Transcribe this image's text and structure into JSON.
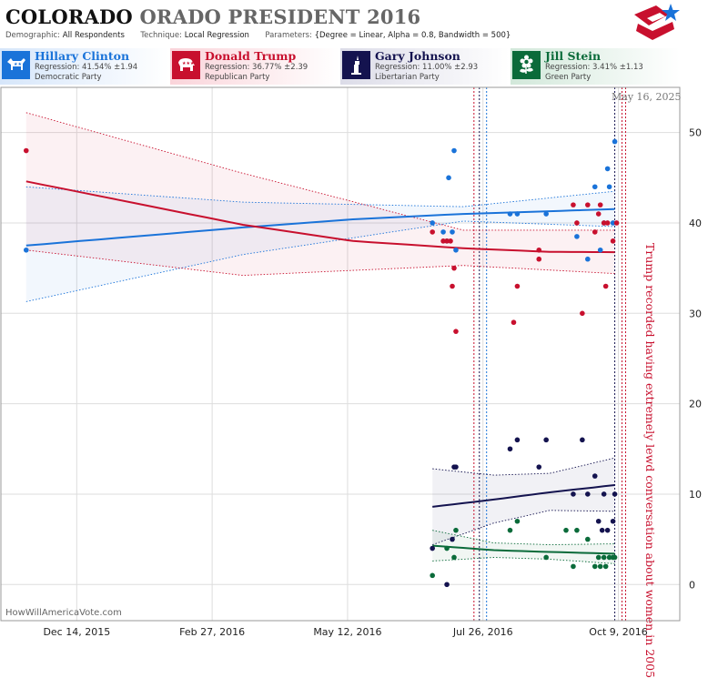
{
  "header": {
    "title_main": "COLORADO",
    "title_rest": "ORADO PRESIDENT 2016",
    "demographic_label": "Demographic:",
    "demographic_value": "All Respondents",
    "technique_label": "Technique:",
    "technique_value": "Local Regression",
    "parameters_label": "Parameters:",
    "parameters_value": "{Degree = Linear, Alpha = 0.8, Bandwidth = 500}"
  },
  "candidates": [
    {
      "name": "Hillary Clinton",
      "regression": "Regression: 41.54% ±1.94",
      "party": "Democratic Party",
      "color": "#1a73d9",
      "icon": "donkey-icon"
    },
    {
      "name": "Donald Trump",
      "regression": "Regression: 36.77% ±2.39",
      "party": "Republican Party",
      "color": "#c8102e",
      "icon": "elephant-icon"
    },
    {
      "name": "Gary Johnson",
      "regression": "Regression: 11.00% ±2.93",
      "party": "Libertarian Party",
      "color": "#14134f",
      "icon": "liberty-statue-icon"
    },
    {
      "name": "Jill Stein",
      "regression": "Regression: 3.41% ±1.13",
      "party": "Green Party",
      "color": "#0b6b3a",
      "icon": "flower-icon"
    }
  ],
  "datestamp": "May 16, 2025",
  "credit": "HowWillAmericaVote.com",
  "annotation": "Trump recorded having extremely lewd conversation about women in 2005",
  "chart_data": {
    "type": "scatter",
    "x_axis": {
      "type": "date",
      "range": [
        "2015-11-02",
        "2016-11-12"
      ],
      "ticks": [
        "2015-12-14",
        "2016-02-27",
        "2016-05-12",
        "2016-07-26",
        "2016-10-09"
      ],
      "tick_labels": [
        "Dec 14, 2015",
        "Feb 27, 2016",
        "May 12, 2016",
        "Jul 26, 2016",
        "Oct 9, 2016"
      ]
    },
    "y_axis": {
      "range": [
        -4,
        55
      ],
      "ticks": [
        0,
        10,
        20,
        30,
        40,
        50
      ],
      "position": "right"
    },
    "grid": true,
    "event_lines": [
      {
        "date": "2016-07-21",
        "color": "#c8102e"
      },
      {
        "date": "2016-07-24",
        "color": "#14134f"
      },
      {
        "date": "2016-07-28",
        "color": "#1a73d9"
      },
      {
        "date": "2016-10-07",
        "color": "#14134f"
      },
      {
        "date": "2016-10-11",
        "color": "#c8102e"
      },
      {
        "date": "2016-10-13",
        "color": "#c8102e"
      }
    ],
    "series": [
      {
        "name": "Hillary Clinton",
        "color": "#1a73d9",
        "points": [
          [
            "2015-11-16",
            37
          ],
          [
            "2016-06-28",
            40
          ],
          [
            "2016-07-04",
            39
          ],
          [
            "2016-07-06",
            38
          ],
          [
            "2016-07-07",
            45
          ],
          [
            "2016-07-09",
            39
          ],
          [
            "2016-07-10",
            48
          ],
          [
            "2016-07-11",
            37
          ],
          [
            "2016-08-10",
            41
          ],
          [
            "2016-08-14",
            41
          ],
          [
            "2016-08-30",
            41
          ],
          [
            "2016-09-16",
            38.5
          ],
          [
            "2016-09-22",
            36
          ],
          [
            "2016-09-26",
            44
          ],
          [
            "2016-09-29",
            37
          ],
          [
            "2016-10-01",
            40
          ],
          [
            "2016-10-03",
            46
          ],
          [
            "2016-10-04",
            44
          ],
          [
            "2016-10-06",
            40
          ],
          [
            "2016-10-07",
            49
          ]
        ],
        "trend": [
          [
            "2015-11-16",
            37.5
          ],
          [
            "2016-01-15",
            38.5
          ],
          [
            "2016-03-15",
            39.5
          ],
          [
            "2016-05-15",
            40.4
          ],
          [
            "2016-07-15",
            41
          ],
          [
            "2016-09-01",
            41.3
          ],
          [
            "2016-10-07",
            41.54
          ]
        ],
        "upper": [
          [
            "2015-11-16",
            44
          ],
          [
            "2016-03-15",
            42.3
          ],
          [
            "2016-07-15",
            41.8
          ],
          [
            "2016-10-07",
            43.5
          ]
        ],
        "lower": [
          [
            "2015-11-16",
            31.3
          ],
          [
            "2016-03-15",
            36.5
          ],
          [
            "2016-07-15",
            40.2
          ],
          [
            "2016-10-07",
            39.6
          ]
        ]
      },
      {
        "name": "Donald Trump",
        "color": "#c8102e",
        "points": [
          [
            "2015-11-16",
            48
          ],
          [
            "2016-06-28",
            39
          ],
          [
            "2016-07-04",
            38
          ],
          [
            "2016-07-06",
            38
          ],
          [
            "2016-07-08",
            38
          ],
          [
            "2016-07-09",
            33
          ],
          [
            "2016-07-10",
            35
          ],
          [
            "2016-07-11",
            28
          ],
          [
            "2016-08-12",
            29
          ],
          [
            "2016-08-14",
            33
          ],
          [
            "2016-08-26",
            37
          ],
          [
            "2016-08-26",
            36
          ],
          [
            "2016-09-14",
            42
          ],
          [
            "2016-09-16",
            40
          ],
          [
            "2016-09-19",
            30
          ],
          [
            "2016-09-22",
            42
          ],
          [
            "2016-09-26",
            39
          ],
          [
            "2016-09-28",
            41
          ],
          [
            "2016-09-29",
            42
          ],
          [
            "2016-10-01",
            40
          ],
          [
            "2016-10-02",
            33
          ],
          [
            "2016-10-03",
            40
          ],
          [
            "2016-10-06",
            38
          ],
          [
            "2016-10-08",
            40
          ]
        ],
        "trend": [
          [
            "2015-11-16",
            44.6
          ],
          [
            "2016-01-15",
            42.2
          ],
          [
            "2016-03-15",
            39.8
          ],
          [
            "2016-05-15",
            38
          ],
          [
            "2016-07-15",
            37.2
          ],
          [
            "2016-09-01",
            36.8
          ],
          [
            "2016-10-07",
            36.77
          ]
        ],
        "upper": [
          [
            "2015-11-16",
            52.2
          ],
          [
            "2016-03-15",
            45.5
          ],
          [
            "2016-07-15",
            39.2
          ],
          [
            "2016-10-07",
            39.2
          ]
        ],
        "lower": [
          [
            "2015-11-16",
            37
          ],
          [
            "2016-03-15",
            34.2
          ],
          [
            "2016-07-15",
            35.3
          ],
          [
            "2016-10-07",
            34.4
          ]
        ]
      },
      {
        "name": "Gary Johnson",
        "color": "#14134f",
        "points": [
          [
            "2016-06-28",
            4
          ],
          [
            "2016-07-06",
            0
          ],
          [
            "2016-07-09",
            5
          ],
          [
            "2016-07-10",
            13
          ],
          [
            "2016-07-11",
            13
          ],
          [
            "2016-08-10",
            15
          ],
          [
            "2016-08-14",
            16
          ],
          [
            "2016-08-26",
            13
          ],
          [
            "2016-08-30",
            16
          ],
          [
            "2016-09-14",
            10
          ],
          [
            "2016-09-19",
            16
          ],
          [
            "2016-09-22",
            10
          ],
          [
            "2016-09-26",
            12
          ],
          [
            "2016-09-28",
            7
          ],
          [
            "2016-09-30",
            6
          ],
          [
            "2016-10-01",
            10
          ],
          [
            "2016-10-03",
            6
          ],
          [
            "2016-10-06",
            7
          ],
          [
            "2016-10-07",
            10
          ]
        ],
        "trend": [
          [
            "2016-06-28",
            8.6
          ],
          [
            "2016-08-01",
            9.4
          ],
          [
            "2016-09-01",
            10.2
          ],
          [
            "2016-10-07",
            11
          ]
        ],
        "upper": [
          [
            "2016-06-28",
            12.8
          ],
          [
            "2016-08-01",
            12.1
          ],
          [
            "2016-09-01",
            12.3
          ],
          [
            "2016-10-07",
            14
          ]
        ],
        "lower": [
          [
            "2016-06-28",
            4.4
          ],
          [
            "2016-08-01",
            6.8
          ],
          [
            "2016-09-01",
            8.2
          ],
          [
            "2016-10-07",
            8.1
          ]
        ]
      },
      {
        "name": "Jill Stein",
        "color": "#0b6b3a",
        "points": [
          [
            "2016-06-28",
            1
          ],
          [
            "2016-07-06",
            4
          ],
          [
            "2016-07-10",
            3
          ],
          [
            "2016-07-11",
            6
          ],
          [
            "2016-08-10",
            6
          ],
          [
            "2016-08-14",
            7
          ],
          [
            "2016-08-30",
            3
          ],
          [
            "2016-09-10",
            6
          ],
          [
            "2016-09-14",
            2
          ],
          [
            "2016-09-16",
            6
          ],
          [
            "2016-09-22",
            5
          ],
          [
            "2016-09-26",
            2
          ],
          [
            "2016-09-28",
            3
          ],
          [
            "2016-09-29",
            2
          ],
          [
            "2016-10-01",
            3
          ],
          [
            "2016-10-02",
            2
          ],
          [
            "2016-10-04",
            3
          ],
          [
            "2016-10-06",
            3
          ],
          [
            "2016-10-07",
            3
          ]
        ],
        "trend": [
          [
            "2016-06-28",
            4.3
          ],
          [
            "2016-08-01",
            3.8
          ],
          [
            "2016-09-01",
            3.6
          ],
          [
            "2016-10-07",
            3.41
          ]
        ],
        "upper": [
          [
            "2016-06-28",
            6
          ],
          [
            "2016-08-01",
            4.6
          ],
          [
            "2016-09-01",
            4.4
          ],
          [
            "2016-10-07",
            4.5
          ]
        ],
        "lower": [
          [
            "2016-06-28",
            2.6
          ],
          [
            "2016-08-01",
            3
          ],
          [
            "2016-09-01",
            2.8
          ],
          [
            "2016-10-07",
            2.3
          ]
        ]
      }
    ]
  }
}
